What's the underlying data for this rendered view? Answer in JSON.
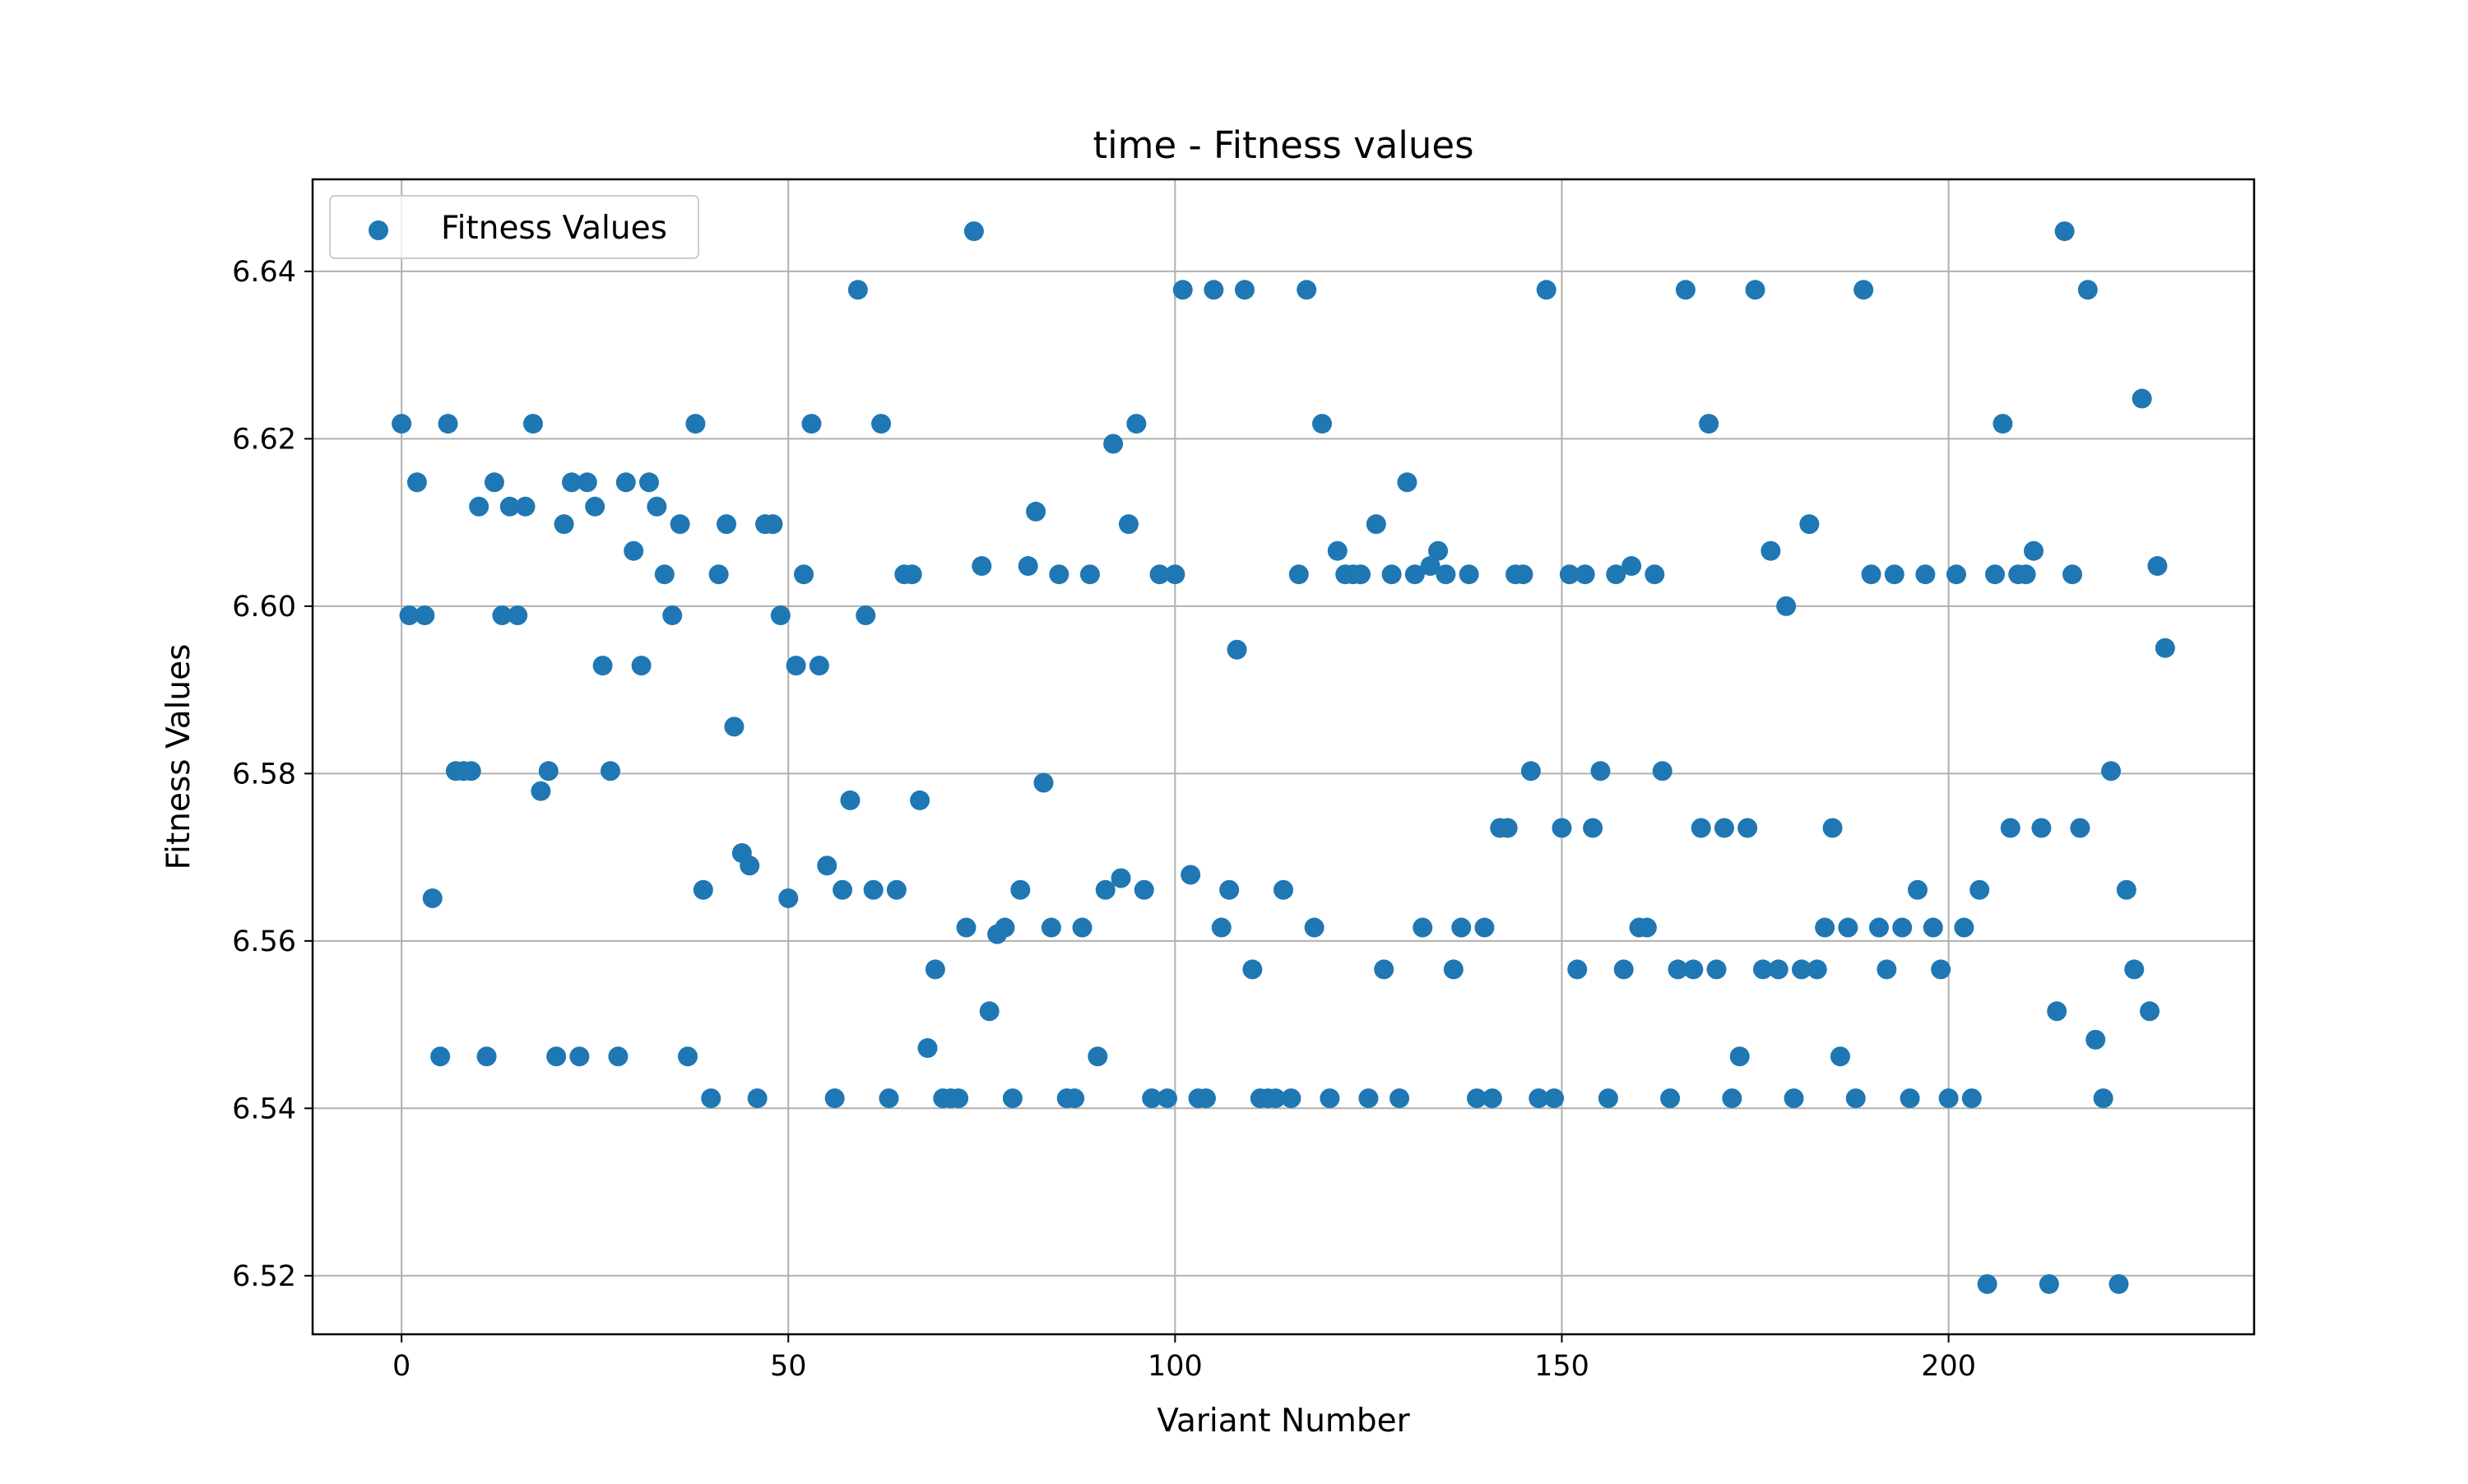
{
  "chart_data": {
    "type": "scatter",
    "title": "time - Fitness values",
    "xlabel": "Variant Number",
    "ylabel": "Fitness Values",
    "xlim": [
      -11.5,
      239.5
    ],
    "ylim": [
      6.513,
      6.651
    ],
    "xticks": [
      0,
      50,
      100,
      150,
      200
    ],
    "xtick_labels": [
      "0",
      "50",
      "100",
      "150",
      "200"
    ],
    "yticks": [
      6.52,
      6.54,
      6.56,
      6.58,
      6.6,
      6.62,
      6.64
    ],
    "ytick_labels": [
      "6.52",
      "6.54",
      "6.56",
      "6.58",
      "6.60",
      "6.62",
      "6.64"
    ],
    "grid": true,
    "legend": {
      "position": "top-left",
      "entries": [
        "Fitness Values"
      ]
    },
    "series": [
      {
        "name": "Fitness Values",
        "color": "#1f77b4",
        "x": [
          0,
          1,
          2,
          3,
          4,
          5,
          6,
          7,
          8,
          9,
          10,
          11,
          12,
          13,
          14,
          15,
          16,
          17,
          18,
          19,
          20,
          21,
          22,
          23,
          24,
          25,
          26,
          27,
          28,
          29,
          30,
          31,
          32,
          33,
          34,
          35,
          36,
          37,
          38,
          39,
          40,
          41,
          42,
          43,
          44,
          45,
          46,
          47,
          48,
          49,
          50,
          51,
          52,
          53,
          54,
          55,
          56,
          57,
          58,
          59,
          60,
          61,
          62,
          63,
          64,
          65,
          66,
          67,
          68,
          69,
          70,
          71,
          72,
          73,
          74,
          75,
          76,
          77,
          78,
          79,
          80,
          81,
          82,
          83,
          84,
          85,
          86,
          87,
          88,
          89,
          90,
          91,
          92,
          93,
          94,
          95,
          96,
          97,
          98,
          99,
          100,
          101,
          102,
          103,
          104,
          105,
          106,
          107,
          108,
          109,
          110,
          111,
          112,
          113,
          114,
          115,
          116,
          117,
          118,
          119,
          120,
          121,
          122,
          123,
          124,
          125,
          126,
          127,
          128,
          129,
          130,
          131,
          132,
          133,
          134,
          135,
          136,
          137,
          138,
          139,
          140,
          141,
          142,
          143,
          144,
          145,
          146,
          147,
          148,
          149,
          150,
          151,
          152,
          153,
          154,
          155,
          156,
          157,
          158,
          159,
          160,
          161,
          162,
          163,
          164,
          165,
          166,
          167,
          168,
          169,
          170,
          171,
          172,
          173,
          174,
          175,
          176,
          177,
          178,
          179,
          180,
          181,
          182,
          183,
          184,
          185,
          186,
          187,
          188,
          189,
          190,
          191,
          192,
          193,
          194,
          195,
          196,
          197,
          198,
          199,
          200,
          201,
          202,
          203,
          204,
          205,
          206,
          207,
          208,
          209,
          210,
          211,
          212,
          213,
          214,
          215,
          216,
          217,
          218,
          219,
          220,
          221,
          222,
          223,
          224,
          225,
          226,
          227,
          228
        ],
        "y": [
          6.6218,
          6.5989,
          6.6148,
          6.5989,
          6.5651,
          6.5462,
          6.6218,
          6.5803,
          6.5803,
          6.5803,
          6.6119,
          6.5462,
          6.6148,
          6.5989,
          6.6119,
          6.5989,
          6.6119,
          6.6218,
          6.5779,
          6.5803,
          6.5462,
          6.6098,
          6.6148,
          6.5462,
          6.6148,
          6.6119,
          6.5929,
          6.5803,
          6.5462,
          6.6148,
          6.6066,
          6.5929,
          6.6148,
          6.6119,
          6.6038,
          6.5989,
          6.6098,
          6.5462,
          6.6218,
          6.5661,
          6.5412,
          6.6038,
          6.6098,
          6.5856,
          6.5705,
          6.569,
          6.5412,
          6.6098,
          6.6098,
          6.5989,
          6.5651,
          6.5929,
          6.6038,
          6.6218,
          6.5929,
          6.569,
          6.5412,
          6.5661,
          6.5768,
          6.6378,
          6.5989,
          6.5661,
          6.6218,
          6.5412,
          6.5661,
          6.6038,
          6.6038,
          6.5768,
          6.5472,
          6.5566,
          6.5412,
          6.5412,
          6.5412,
          6.5616,
          6.6448,
          6.6048,
          6.5516,
          6.5608,
          6.5616,
          6.5412,
          6.5661,
          6.6048,
          6.6113,
          6.5789,
          6.5616,
          6.6038,
          6.5412,
          6.5412,
          6.5616,
          6.6038,
          6.5462,
          6.5661,
          6.6194,
          6.5675,
          6.6098,
          6.6218,
          6.5661,
          6.5412,
          6.6038,
          6.5412,
          6.6038,
          6.6378,
          6.5679,
          6.5412,
          6.5412,
          6.6378,
          6.5616,
          6.5661,
          6.5948,
          6.6378,
          6.5566,
          6.5412,
          6.5412,
          6.5412,
          6.5661,
          6.5412,
          6.6038,
          6.6378,
          6.5616,
          6.6218,
          6.5412,
          6.6066,
          6.6038,
          6.6038,
          6.6038,
          6.5412,
          6.6098,
          6.5566,
          6.6038,
          6.5412,
          6.6148,
          6.6038,
          6.5616,
          6.6048,
          6.6066,
          6.6038,
          6.5566,
          6.5616,
          6.6038,
          6.5412,
          6.5616,
          6.5412,
          6.5735,
          6.5735,
          6.6038,
          6.6038,
          6.5803,
          6.5412,
          6.6378,
          6.5412,
          6.5735,
          6.6038,
          6.5566,
          6.6038,
          6.5735,
          6.5803,
          6.5412,
          6.6038,
          6.5566,
          6.6048,
          6.5616,
          6.5616,
          6.6038,
          6.5803,
          6.5412,
          6.5566,
          6.6378,
          6.5566,
          6.5735,
          6.6218,
          6.5566,
          6.5735,
          6.5412,
          6.5462,
          6.5735,
          6.6378,
          6.5566,
          6.6066,
          6.5566,
          6.6,
          6.5412,
          6.5566,
          6.6098,
          6.5566,
          6.5616,
          6.5735,
          6.5462,
          6.5616,
          6.5412,
          6.6378,
          6.6038,
          6.5616,
          6.5566,
          6.6038,
          6.5616,
          6.5412,
          6.5661,
          6.6038,
          6.5616,
          6.5566,
          6.5412,
          6.6038,
          6.5616,
          6.5412,
          6.5661,
          6.519,
          6.6038,
          6.6218,
          6.5735,
          6.6038,
          6.6038,
          6.6066,
          6.5735,
          6.519,
          6.5516,
          6.6448,
          6.6038,
          6.5735,
          6.6378,
          6.5482,
          6.5412,
          6.5803,
          6.519,
          6.5661,
          6.5566,
          6.6248,
          6.5516,
          6.6048,
          6.595
        ]
      }
    ]
  }
}
